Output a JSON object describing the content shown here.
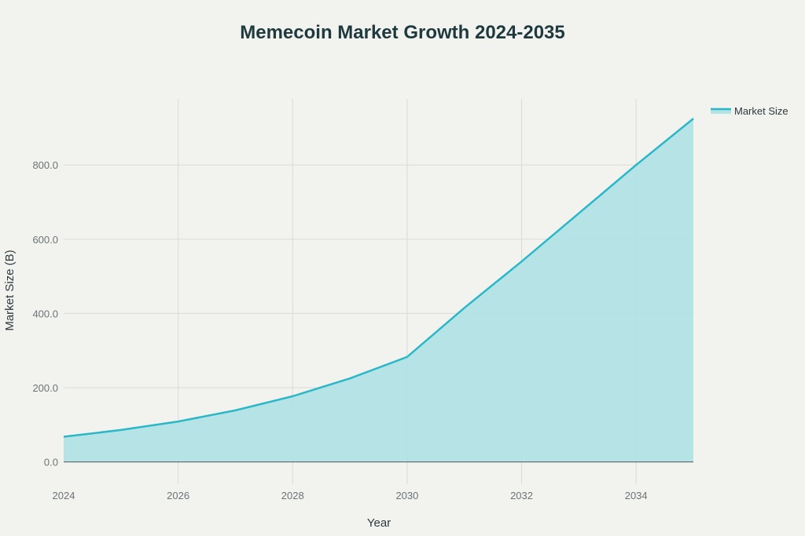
{
  "chart_data": {
    "type": "area",
    "title": "Memecoin Market Growth 2024-2035",
    "xlabel": "Year",
    "ylabel": "Market Size (B)",
    "x": [
      2024,
      2025,
      2026,
      2027,
      2028,
      2029,
      2030,
      2031,
      2032,
      2033,
      2034,
      2035
    ],
    "series": [
      {
        "name": "Market Size",
        "values": [
          68,
          86,
          109,
          139,
          177,
          225,
          283,
          415,
          540,
          670,
          800,
          925
        ],
        "color": "#2ab8c8",
        "fill": "#b2e2e4"
      }
    ],
    "xticks": [
      2024,
      2026,
      2028,
      2030,
      2032,
      2034
    ],
    "xtick_labels": [
      "2024",
      "2026",
      "2028",
      "2030",
      "2032",
      "2034"
    ],
    "yticks": [
      0,
      200,
      400,
      600,
      800
    ],
    "ytick_labels": [
      "0.0",
      "200.0",
      "400.0",
      "600.0",
      "800.0"
    ],
    "xlim": [
      2024,
      2035
    ],
    "ylim": [
      -60,
      978
    ],
    "grid": true,
    "legend": "top-right"
  }
}
